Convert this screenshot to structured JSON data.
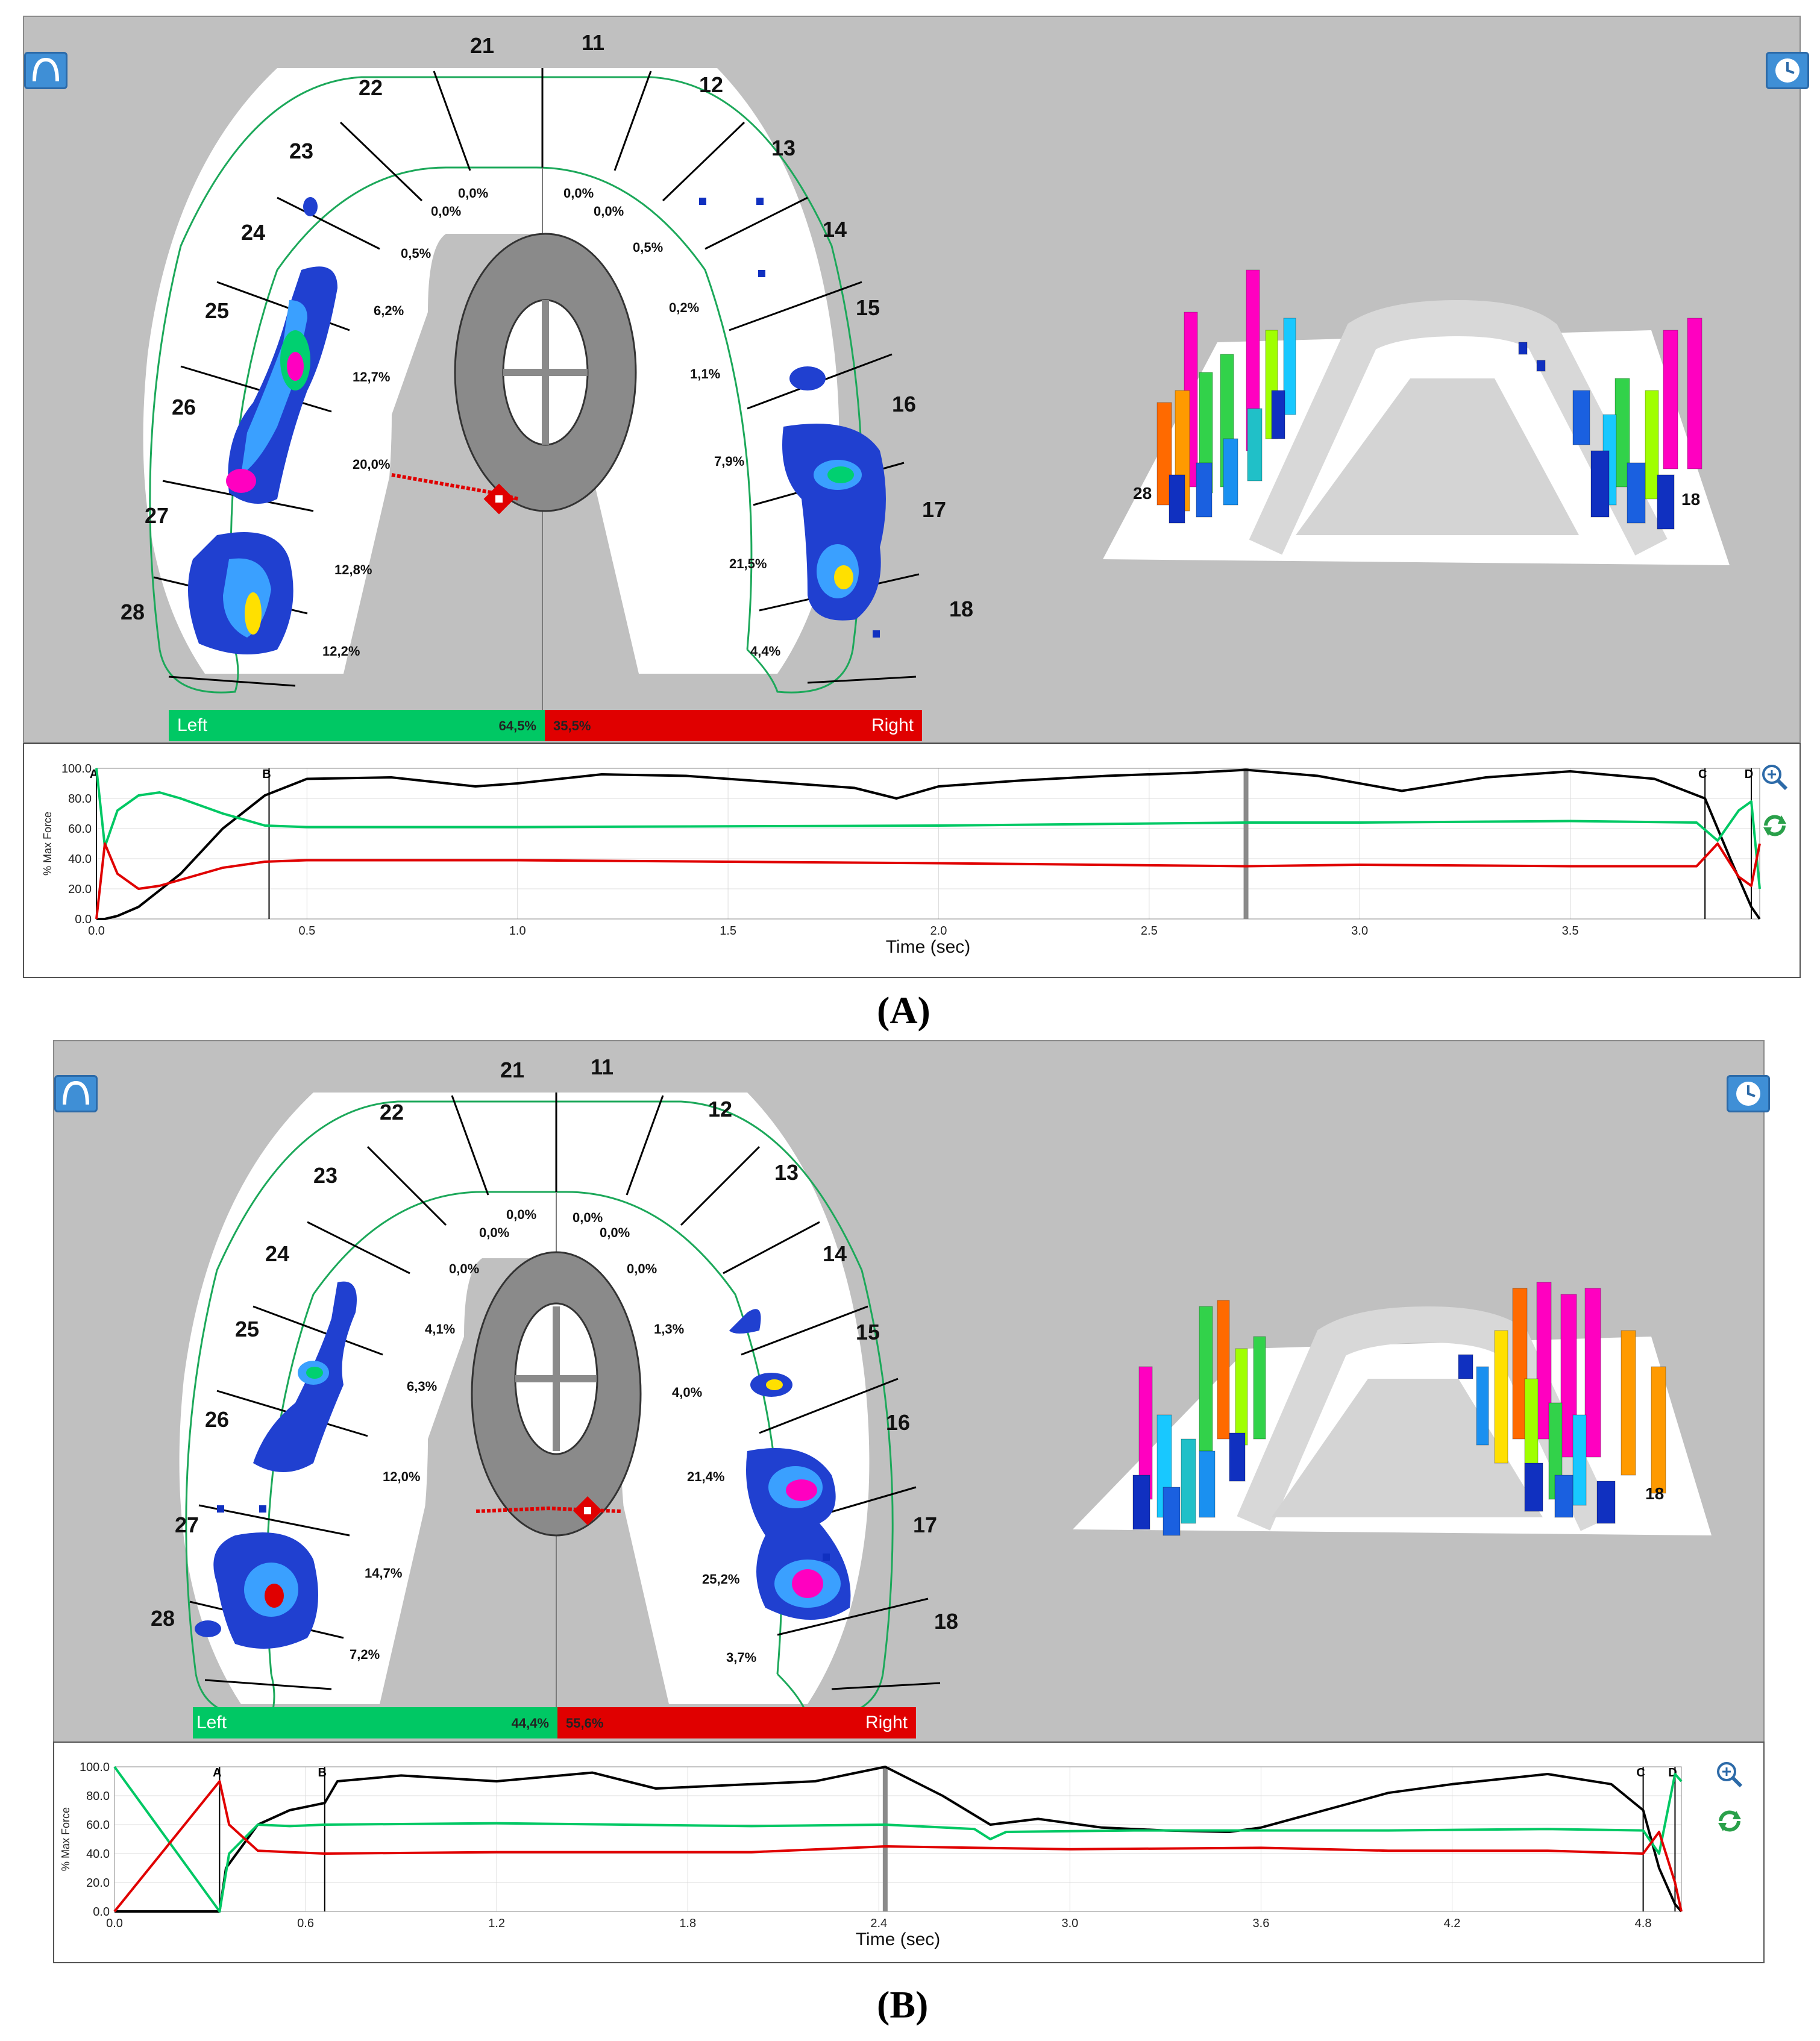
{
  "panels": [
    {
      "caption": "(A)",
      "tooth_numbers": [
        "21",
        "11",
        "22",
        "12",
        "23",
        "13",
        "24",
        "14",
        "25",
        "15",
        "26",
        "16",
        "27",
        "17",
        "28",
        "18"
      ],
      "left_percents": [
        "0,0%",
        "0,0%",
        "0,5%",
        "6,2%",
        "12,7%",
        "20,0%",
        "12,8%",
        "12,2%"
      ],
      "right_percents": [
        "0,0%",
        "0,0%",
        "0,5%",
        "0,2%",
        "1,1%",
        "7,9%",
        "21,5%",
        "4,4%"
      ],
      "left_label": "Left",
      "left_total": "64,5%",
      "right_label": "Right",
      "right_total": "35,5%",
      "chart": {
        "y_axis_title": "% Max Force",
        "x_axis_title": "Time (sec)",
        "y_ticks": [
          "100.0",
          "80.0",
          "60.0",
          "40.0",
          "20.0",
          "0.0"
        ],
        "x_ticks": [
          "0.0",
          "0.5",
          "1.0",
          "1.5",
          "2.0",
          "2.5",
          "3.0",
          "3.5"
        ],
        "markers": [
          "A",
          "B",
          "C",
          "D"
        ]
      }
    },
    {
      "caption": "(B)",
      "tooth_numbers": [
        "21",
        "11",
        "22",
        "12",
        "23",
        "13",
        "24",
        "14",
        "25",
        "15",
        "26",
        "16",
        "27",
        "17",
        "28",
        "18"
      ],
      "left_percents": [
        "0,0%",
        "0,0%",
        "0,0%",
        "4,1%",
        "6,3%",
        "12,0%",
        "14,7%",
        "7,2%"
      ],
      "right_percents": [
        "0,0%",
        "0,0%",
        "0,0%",
        "1,3%",
        "4,0%",
        "21,4%",
        "25,2%",
        "3,7%"
      ],
      "left_label": "Left",
      "left_total": "44,4%",
      "right_label": "Right",
      "right_total": "55,6%",
      "chart": {
        "y_axis_title": "% Max Force",
        "x_axis_title": "Time (sec)",
        "y_ticks": [
          "100.0",
          "80.0",
          "60.0",
          "40.0",
          "20.0",
          "0.0"
        ],
        "x_ticks": [
          "0.0",
          "0.6",
          "1.2",
          "1.8",
          "2.4",
          "3.0",
          "3.6",
          "4.2",
          "4.8"
        ],
        "markers": [
          "A",
          "B",
          "C",
          "D"
        ]
      }
    }
  ],
  "colors": {
    "total": "#000000",
    "left": "#00c864",
    "right": "#e00000",
    "panel_bg": "#c0c0c0"
  },
  "icons": [
    "arch-view-icon",
    "clock-icon",
    "zoom-in-icon",
    "refresh-icon"
  ],
  "chart_data": [
    {
      "type": "line",
      "title": "",
      "xlabel": "Time (sec)",
      "ylabel": "% Max Force",
      "xlim": [
        0,
        3.95
      ],
      "ylim": [
        0,
        100
      ],
      "grid": true,
      "series": [
        {
          "x": [
            0,
            0.02,
            0.05,
            0.1,
            0.2,
            0.3,
            0.4,
            0.5,
            0.7,
            0.9,
            1.0,
            1.2,
            1.4,
            1.6,
            1.8,
            1.9,
            2.0,
            2.2,
            2.4,
            2.6,
            2.73,
            2.9,
            3.1,
            3.3,
            3.5,
            3.7,
            3.82,
            3.88,
            3.93,
            3.95
          ],
          "y": [
            0,
            0,
            2,
            8,
            30,
            60,
            82,
            93,
            94,
            88,
            90,
            96,
            95,
            91,
            87,
            80,
            88,
            92,
            95,
            97,
            99,
            95,
            85,
            94,
            98,
            93,
            80,
            40,
            8,
            0
          ]
        },
        {
          "x": [
            0,
            0.02,
            0.05,
            0.1,
            0.15,
            0.2,
            0.3,
            0.4,
            0.5,
            1.0,
            2.0,
            2.73,
            3.0,
            3.5,
            3.8,
            3.85,
            3.9,
            3.93,
            3.95
          ],
          "y": [
            100,
            48,
            72,
            82,
            84,
            80,
            70,
            62,
            61,
            61,
            62,
            64,
            64,
            65,
            64,
            52,
            72,
            78,
            20
          ]
        },
        {
          "x": [
            0,
            0.02,
            0.05,
            0.1,
            0.15,
            0.2,
            0.3,
            0.4,
            0.5,
            1.0,
            2.0,
            2.73,
            3.0,
            3.5,
            3.8,
            3.85,
            3.9,
            3.93,
            3.95
          ],
          "y": [
            0,
            50,
            30,
            20,
            22,
            26,
            34,
            38,
            39,
            39,
            37,
            35,
            36,
            35,
            35,
            50,
            28,
            22,
            50
          ]
        }
      ]
    },
    {
      "type": "line",
      "title": "",
      "xlabel": "Time (sec)",
      "ylabel": "% Max Force",
      "xlim": [
        0,
        4.92
      ],
      "ylim": [
        0,
        100
      ],
      "grid": true,
      "series": [
        {
          "x": [
            0,
            0.33,
            0.35,
            0.45,
            0.55,
            0.66,
            0.7,
            0.9,
            1.2,
            1.5,
            1.7,
            2.0,
            2.2,
            2.42,
            2.6,
            2.75,
            2.9,
            3.1,
            3.3,
            3.5,
            3.6,
            3.8,
            4.0,
            4.2,
            4.5,
            4.7,
            4.8,
            4.85,
            4.9,
            4.92
          ],
          "y": [
            0,
            0,
            30,
            60,
            70,
            75,
            90,
            94,
            90,
            96,
            85,
            88,
            90,
            100,
            80,
            60,
            64,
            58,
            56,
            55,
            58,
            70,
            82,
            88,
            95,
            88,
            70,
            30,
            5,
            0
          ]
        },
        {
          "x": [
            0,
            0.33,
            0.36,
            0.45,
            0.55,
            0.66,
            1.2,
            2.0,
            2.42,
            2.7,
            2.75,
            2.8,
            3.2,
            3.6,
            4.0,
            4.5,
            4.8,
            4.85,
            4.9,
            4.92
          ],
          "y": [
            100,
            0,
            40,
            60,
            59,
            60,
            61,
            59,
            60,
            57,
            50,
            55,
            56,
            56,
            56,
            57,
            56,
            40,
            95,
            90
          ]
        },
        {
          "x": [
            0,
            0.33,
            0.36,
            0.45,
            0.55,
            0.66,
            1.2,
            2.0,
            2.42,
            3.0,
            3.6,
            4.0,
            4.5,
            4.8,
            4.85,
            4.9,
            4.92
          ],
          "y": [
            0,
            90,
            60,
            42,
            41,
            40,
            41,
            41,
            45,
            43,
            44,
            42,
            42,
            40,
            55,
            20,
            0
          ]
        }
      ]
    }
  ]
}
